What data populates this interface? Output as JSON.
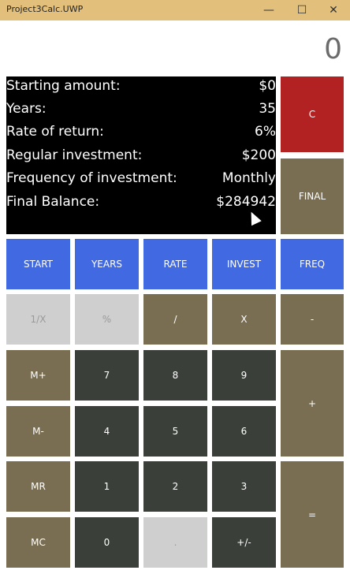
{
  "window": {
    "title": "Project3Calc.UWP",
    "minimize": "—",
    "maximize": "☐",
    "close": "✕"
  },
  "display": {
    "value": "0"
  },
  "info": {
    "rows": [
      {
        "label": "Starting amount:",
        "value": "$0"
      },
      {
        "label": "Years:",
        "value": "35"
      },
      {
        "label": "Rate of return:",
        "value": "6%"
      },
      {
        "label": "Regular investment:",
        "value": "$200"
      },
      {
        "label": "Frequency of investment:",
        "value": "Monthly"
      },
      {
        "label": "Final Balance:",
        "value": "$284942"
      }
    ]
  },
  "buttons": {
    "c": "C",
    "final": "FINAL",
    "start": "START",
    "years": "YEARS",
    "rate": "RATE",
    "invest": "INVEST",
    "freq": "FREQ",
    "reciprocal": "1/X",
    "percent": "%",
    "divide": "/",
    "multiply": "X",
    "minus": "-",
    "mplus": "M+",
    "seven": "7",
    "eight": "8",
    "nine": "9",
    "plus": "+",
    "mminus": "M-",
    "four": "4",
    "five": "5",
    "six": "6",
    "mr": "MR",
    "one": "1",
    "two": "2",
    "three": "3",
    "equals": "=",
    "mc": "MC",
    "zero": "0",
    "dot": ".",
    "negate": "+/-"
  }
}
